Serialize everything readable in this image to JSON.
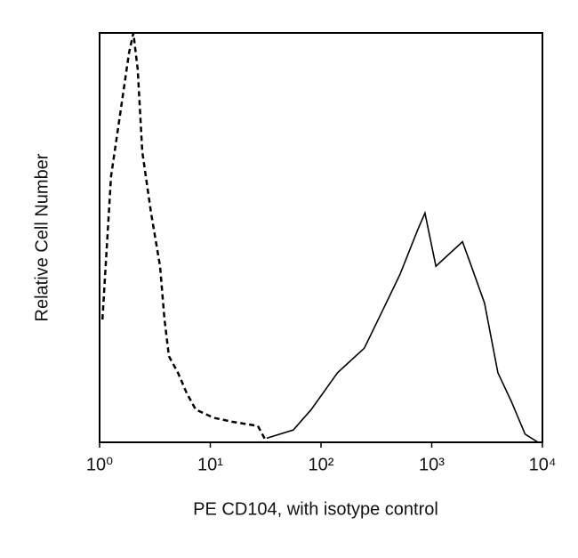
{
  "chart_data": {
    "type": "line",
    "xlabel": "PE CD104, with isotype control",
    "ylabel": "Relative Cell Number",
    "xscale": "log",
    "xlim": [
      1,
      10000
    ],
    "xticks": [
      {
        "value": 1,
        "label": "10⁰"
      },
      {
        "value": 10,
        "label": "10¹"
      },
      {
        "value": 100,
        "label": "10²"
      },
      {
        "value": 1000,
        "label": "10³"
      },
      {
        "value": 10000,
        "label": "10⁴"
      }
    ],
    "ylim": [
      0,
      100
    ],
    "series": [
      {
        "color": "#000000",
        "linestyle": "dashed",
        "x": [
          1.06,
          1.27,
          1.53,
          1.84,
          2.02,
          2.21,
          2.43,
          2.92,
          3.52,
          3.86,
          4.23,
          5.1,
          6.13,
          7.38,
          10.7,
          15.9,
          26.9,
          32.3
        ],
        "values": [
          30,
          65,
          80,
          95,
          100,
          91,
          71,
          56,
          43,
          30,
          21,
          17,
          12,
          8,
          6,
          5,
          4,
          0
        ]
      },
      {
        "color": "#000000",
        "linestyle": "solid",
        "x": [
          32.3,
          56.2,
          81.6,
          141,
          246,
          357,
          517,
          750,
          869,
          1090,
          1310,
          1895,
          2280,
          3000,
          3960,
          5230,
          6970,
          9140
        ],
        "values": [
          1,
          3,
          8,
          17,
          23,
          32,
          41,
          52,
          56,
          43,
          45,
          49,
          43,
          34,
          17,
          10,
          2,
          0
        ]
      }
    ]
  }
}
